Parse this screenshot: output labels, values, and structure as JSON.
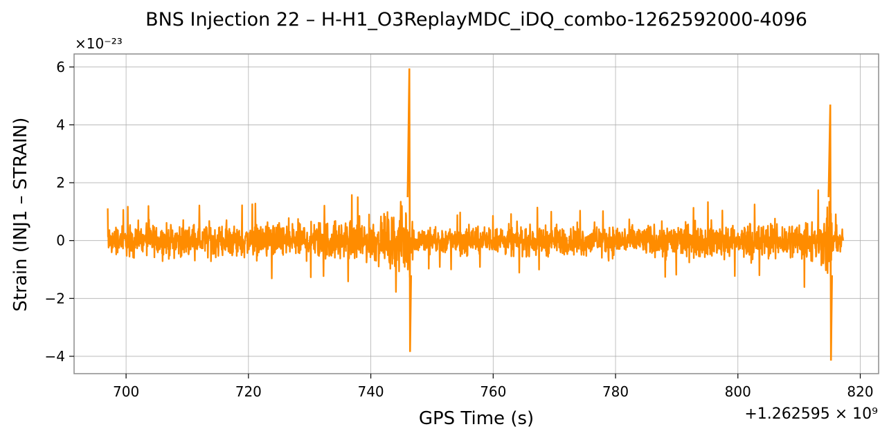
{
  "chart_data": {
    "type": "line",
    "title": "BNS Injection 22 – H-H1_O3ReplayMDC_iDQ_combo-1262592000-4096",
    "xlabel": "GPS Time (s)",
    "ylabel": "Strain (INJ1 – STRAIN)",
    "x_offset_label": "+1.262595 × 10⁹",
    "y_scale_label": "×10⁻²³",
    "xlim": [
      691.5,
      823
    ],
    "ylim": [
      -4.6,
      6.45
    ],
    "xticks": [
      700,
      720,
      740,
      760,
      780,
      800,
      820
    ],
    "yticks": [
      -4,
      -2,
      0,
      2,
      4,
      6
    ],
    "ytick_labels": [
      "−4",
      "−2",
      "0",
      "2",
      "4",
      "6"
    ],
    "grid": true,
    "line_color": "#ff8c00",
    "x_range": [
      697,
      817.2
    ],
    "features": [
      {
        "x": 746.3,
        "y_max": 5.95,
        "y_min": -3.85
      },
      {
        "x": 815.1,
        "y_max": 4.7,
        "y_min": -4.15
      }
    ],
    "noise_envelope": [
      {
        "x": 697,
        "y": 0.9
      },
      {
        "x": 720,
        "y": 1.0
      },
      {
        "x": 738,
        "y": 1.2
      },
      {
        "x": 744,
        "y": 1.6
      },
      {
        "x": 746.3,
        "y": 2.4
      },
      {
        "x": 747,
        "y": 0.8
      },
      {
        "x": 780,
        "y": 0.9
      },
      {
        "x": 808,
        "y": 1.1
      },
      {
        "x": 814,
        "y": 1.5
      },
      {
        "x": 815.1,
        "y": 2.8
      },
      {
        "x": 815.6,
        "y": 0.8
      },
      {
        "x": 817.2,
        "y": 0.7
      }
    ]
  }
}
